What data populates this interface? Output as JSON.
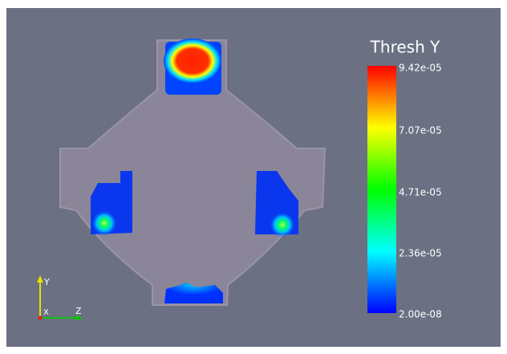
{
  "colorbar": {
    "title": "Thresh Y",
    "labels": [
      "9.42e-05",
      "7.07e-05",
      "4.71e-05",
      "2.36e-05",
      "2.00e-08"
    ]
  },
  "axes": {
    "y": "Y",
    "x": "X",
    "z": "Z"
  }
}
